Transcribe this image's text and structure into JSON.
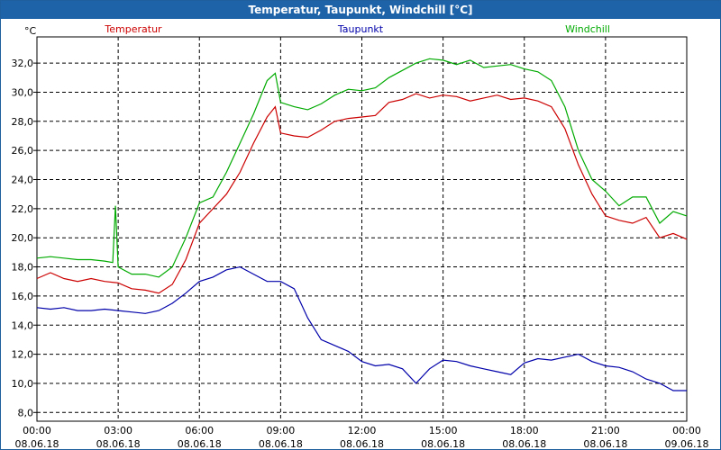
{
  "window": {
    "title": "Temperatur, Taupunkt, Windchill [°C]"
  },
  "colors": {
    "frame": "#1e63a8",
    "grid": "#000000",
    "axis": "#000000"
  },
  "chart_data": {
    "type": "line",
    "title": "Temperatur, Taupunkt, Windchill [°C]",
    "ylabel": "°C",
    "xlabel": "",
    "ylim": [
      7.4,
      33.8
    ],
    "xlim": [
      0,
      24
    ],
    "grid": true,
    "legend": "top",
    "yticks": [
      8,
      10,
      12,
      14,
      16,
      18,
      20,
      22,
      24,
      26,
      28,
      30,
      32
    ],
    "ytick_labels": [
      "8,0",
      "10,0",
      "12,0",
      "14,0",
      "16,0",
      "18,0",
      "20,0",
      "22,0",
      "24,0",
      "26,0",
      "28,0",
      "30,0",
      "32,0"
    ],
    "xticks": [
      {
        "x": 0,
        "time": "00:00",
        "date": "08.06.18"
      },
      {
        "x": 3,
        "time": "03:00",
        "date": "08.06.18"
      },
      {
        "x": 6,
        "time": "06:00",
        "date": "08.06.18"
      },
      {
        "x": 9,
        "time": "09:00",
        "date": "08.06.18"
      },
      {
        "x": 12,
        "time": "12:00",
        "date": "08.06.18"
      },
      {
        "x": 15,
        "time": "15:00",
        "date": "08.06.18"
      },
      {
        "x": 18,
        "time": "18:00",
        "date": "08.06.18"
      },
      {
        "x": 21,
        "time": "21:00",
        "date": "08.06.18"
      },
      {
        "x": 24,
        "time": "00:00",
        "date": "09.06.18"
      }
    ],
    "series": [
      {
        "name": "Temperatur",
        "color": "#cc0000",
        "x": [
          0,
          0.5,
          1,
          1.5,
          2,
          2.5,
          3,
          3.5,
          4,
          4.5,
          5,
          5.5,
          6,
          6.5,
          7,
          7.5,
          8,
          8.5,
          8.8,
          9,
          9.5,
          10,
          10.5,
          11,
          11.5,
          12,
          12.5,
          13,
          13.5,
          14,
          14.5,
          15,
          15.5,
          16,
          16.5,
          17,
          17.5,
          18,
          18.5,
          19,
          19.5,
          20,
          20.5,
          21,
          21.5,
          22,
          22.5,
          23,
          23.5,
          24
        ],
        "y": [
          17.2,
          17.6,
          17.2,
          17.0,
          17.2,
          17.0,
          16.9,
          16.5,
          16.4,
          16.2,
          16.8,
          18.5,
          21.0,
          22.0,
          23.0,
          24.5,
          26.5,
          28.3,
          29.0,
          27.2,
          27.0,
          26.9,
          27.4,
          28.0,
          28.2,
          28.3,
          28.4,
          29.3,
          29.5,
          29.9,
          29.6,
          29.8,
          29.7,
          29.4,
          29.6,
          29.8,
          29.5,
          29.6,
          29.4,
          29.0,
          27.5,
          25.0,
          23.0,
          21.5,
          21.2,
          21.0,
          21.4,
          20.0,
          20.3,
          19.9
        ]
      },
      {
        "name": "Taupunkt",
        "color": "#0000aa",
        "x": [
          0,
          0.5,
          1,
          1.5,
          2,
          2.5,
          3,
          3.5,
          4,
          4.5,
          5,
          5.5,
          6,
          6.5,
          7,
          7.5,
          8,
          8.5,
          9,
          9.5,
          10,
          10.5,
          11,
          11.5,
          12,
          12.5,
          13,
          13.5,
          14,
          14.5,
          15,
          15.5,
          16,
          16.5,
          17,
          17.5,
          18,
          18.5,
          19,
          19.5,
          20,
          20.5,
          21,
          21.5,
          22,
          22.5,
          23,
          23.5,
          24
        ],
        "y": [
          15.2,
          15.1,
          15.2,
          15.0,
          15.0,
          15.1,
          15.0,
          14.9,
          14.8,
          15.0,
          15.5,
          16.2,
          17.0,
          17.3,
          17.8,
          18.0,
          17.5,
          17.0,
          17.0,
          16.5,
          14.5,
          13.0,
          12.6,
          12.2,
          11.5,
          11.2,
          11.3,
          11.0,
          10.0,
          11.0,
          11.6,
          11.5,
          11.2,
          11.0,
          10.8,
          10.6,
          11.4,
          11.7,
          11.6,
          11.8,
          12.0,
          11.5,
          11.2,
          11.1,
          10.8,
          10.3,
          10.0,
          9.5,
          9.5
        ]
      },
      {
        "name": "Windchill",
        "color": "#00aa00",
        "x": [
          0,
          0.5,
          1,
          1.5,
          2,
          2.5,
          2.8,
          2.9,
          3,
          3.5,
          4,
          4.5,
          5,
          5.5,
          6,
          6.5,
          7,
          7.5,
          8,
          8.5,
          8.8,
          9,
          9.5,
          10,
          10.5,
          11,
          11.5,
          12,
          12.5,
          13,
          13.5,
          14,
          14.5,
          15,
          15.5,
          16,
          16.5,
          17,
          17.5,
          18,
          18.5,
          19,
          19.5,
          20,
          20.5,
          21,
          21.5,
          22,
          22.5,
          23,
          23.5,
          24
        ],
        "y": [
          18.6,
          18.7,
          18.6,
          18.5,
          18.5,
          18.4,
          18.3,
          22.2,
          18.0,
          17.5,
          17.5,
          17.3,
          18.0,
          20.0,
          22.4,
          22.8,
          24.5,
          26.5,
          28.5,
          30.8,
          31.3,
          29.3,
          29.0,
          28.8,
          29.2,
          29.8,
          30.2,
          30.1,
          30.3,
          31.0,
          31.5,
          32.0,
          32.3,
          32.2,
          31.9,
          32.2,
          31.7,
          31.8,
          31.9,
          31.6,
          31.4,
          30.8,
          29.0,
          26.0,
          24.0,
          23.2,
          22.2,
          22.8,
          22.8,
          21.0,
          21.8,
          21.5
        ]
      }
    ]
  }
}
